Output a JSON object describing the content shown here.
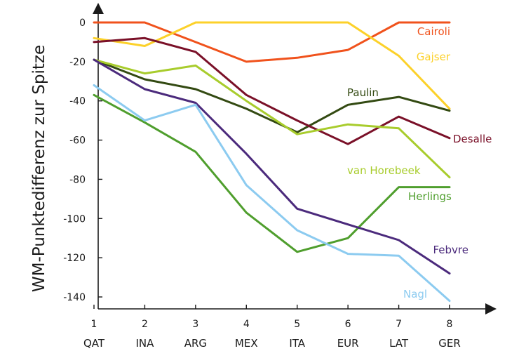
{
  "chart_data": {
    "type": "line",
    "title": "",
    "ylabel": "WM-Punktedifferenz zur Spitze",
    "xlabel": "",
    "x": [
      "1",
      "2",
      "3",
      "4",
      "5",
      "6",
      "7",
      "8"
    ],
    "categories": [
      "QAT",
      "INA",
      "ARG",
      "MEX",
      "ITA",
      "EUR",
      "LAT",
      "GER"
    ],
    "ylim": [
      -145,
      5
    ],
    "yticks": [
      0,
      -20,
      -40,
      -60,
      -80,
      -100,
      -120,
      -140
    ],
    "grid": false,
    "series": [
      {
        "name": "Cairoli",
        "color": "#f0521c",
        "values": [
          0,
          0,
          -10,
          -20,
          -18,
          -14,
          0,
          0
        ]
      },
      {
        "name": "Gajser",
        "color": "#fcd12a",
        "values": [
          -8,
          -12,
          0,
          0,
          0,
          0,
          -17,
          -44
        ]
      },
      {
        "name": "Paulin",
        "color": "#334a12",
        "values": [
          -19,
          -29,
          -34,
          -44,
          -56,
          -42,
          -38,
          -45
        ]
      },
      {
        "name": "Desalle",
        "color": "#7a1028",
        "values": [
          -10,
          -8,
          -15,
          -37,
          -50,
          -62,
          -48,
          -59
        ]
      },
      {
        "name": "van Horebeek",
        "color": "#a8cc2c",
        "values": [
          -19,
          -26,
          -22,
          -40,
          -57,
          -52,
          -54,
          -79
        ]
      },
      {
        "name": "Herlings",
        "color": "#4f9e2d",
        "values": [
          -37,
          -51,
          -66,
          -97,
          -117,
          -110,
          -84,
          -84
        ]
      },
      {
        "name": "Febvre",
        "color": "#4b2a7c",
        "values": [
          -19,
          -34,
          -41,
          -67,
          -95,
          -103,
          -111,
          -128
        ]
      },
      {
        "name": "Nagl",
        "color": "#8ccbf0",
        "values": [
          -32,
          -50,
          -42,
          -83,
          -106,
          -118,
          -119,
          -142
        ]
      }
    ]
  }
}
